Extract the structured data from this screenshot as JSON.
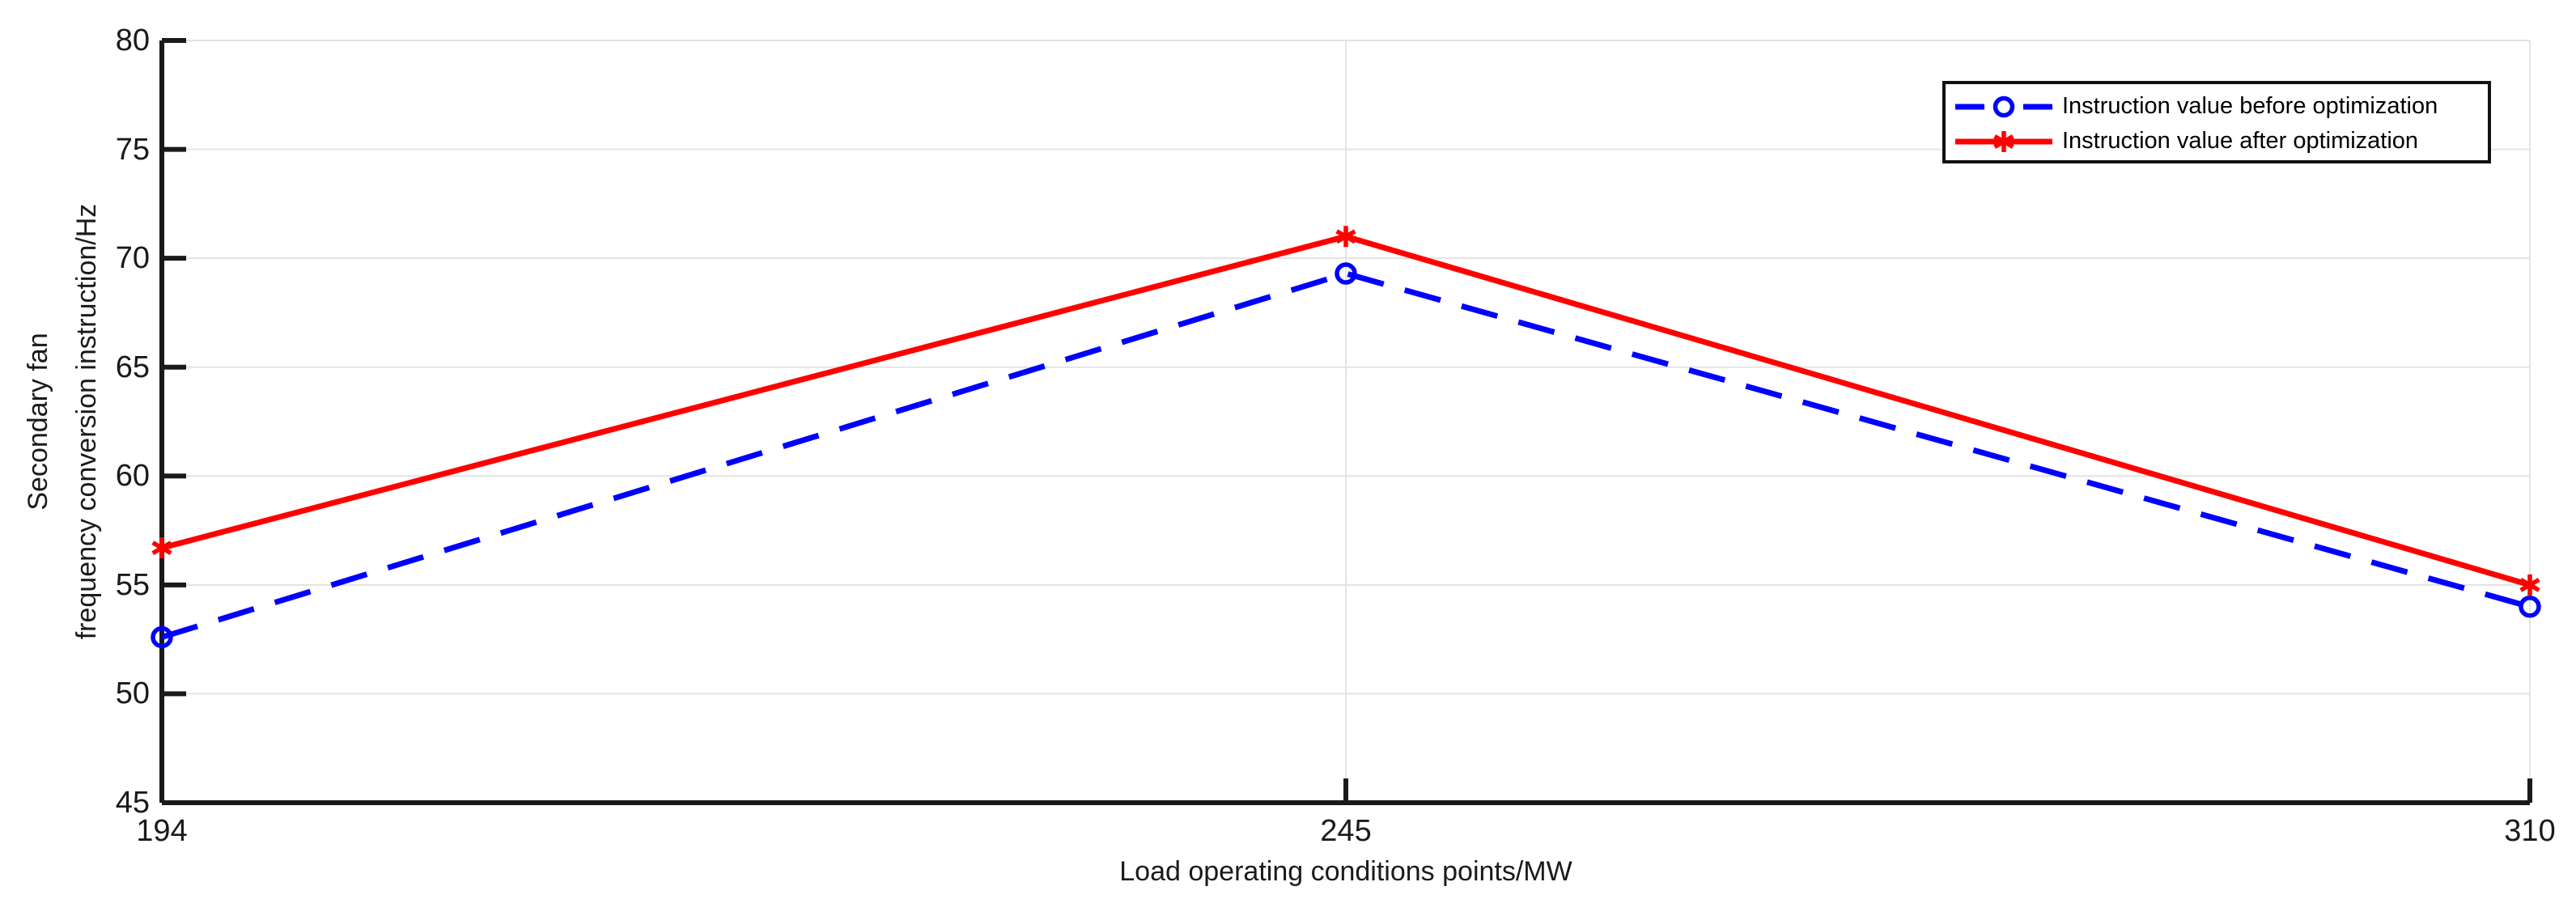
{
  "chart_data": {
    "type": "line",
    "title": "",
    "xlabel": "Load operating conditions points/MW",
    "ylabel_line1": "Secondary fan",
    "ylabel_line2": "frequency conversion instruction/Hz",
    "categories": [
      "194",
      "245",
      "310"
    ],
    "x_values": [
      194,
      245,
      310
    ],
    "series": [
      {
        "name": "Instruction value before optimization",
        "values": [
          52.6,
          69.3,
          54.0
        ],
        "color": "#0000ff",
        "line_style": "dashed",
        "marker": "circle"
      },
      {
        "name": "Instruction value after optimization",
        "values": [
          56.7,
          71.0,
          55.0
        ],
        "color": "#ff0000",
        "line_style": "solid",
        "marker": "asterisk"
      }
    ],
    "ylim": [
      45,
      80
    ],
    "yticks": [
      45,
      50,
      55,
      60,
      65,
      70,
      75,
      80
    ],
    "grid": true,
    "legend_position": "top-right",
    "x_axis_categorical": true
  },
  "colors": {
    "axis": "#1a1a1a",
    "grid": "#e3e3e3",
    "background": "#ffffff",
    "series_before": "#0000ff",
    "series_after": "#ff0000"
  }
}
